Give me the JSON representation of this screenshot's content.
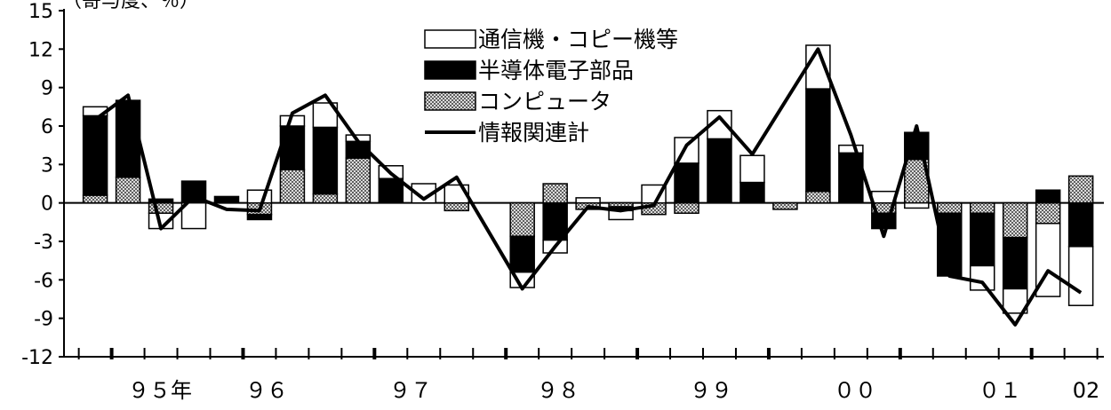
{
  "chart_data": {
    "type": "bar",
    "stacked": true,
    "title": "",
    "xlabel": "",
    "ylabel": "",
    "ylim": [
      -12,
      15
    ],
    "yticks": [
      15,
      12,
      9,
      6,
      3,
      0,
      -3,
      -6,
      -9,
      -12
    ],
    "grid": false,
    "legend_position": "top-center",
    "top_label": "（寄与度、％）",
    "x_year_labels": [
      "９５年",
      "９６",
      "９７",
      "９８",
      "９９",
      "００",
      "０１",
      "02"
    ],
    "colors": {
      "通信機・コピー機等": "#ffffff",
      "半導体電子部品": "#000000",
      "コンピュータ": "#b0b0b0",
      "情報関連計": "#000000"
    },
    "series": [
      {
        "name": "コンピュータ",
        "kind": "bar",
        "values": [
          0.6,
          2.0,
          -0.8,
          0.1,
          0.0,
          -0.9,
          2.6,
          0.7,
          3.5,
          0.0,
          0.0,
          -0.6,
          0.0,
          -2.6,
          1.5,
          -0.5,
          -0.3,
          -0.9,
          -0.8,
          0.0,
          0.0,
          -0.5,
          0.9,
          0.0,
          -0.8,
          3.4,
          -0.8,
          -0.8,
          -2.7,
          -1.6,
          2.1
        ]
      },
      {
        "name": "半導体電子部品",
        "kind": "bar",
        "values": [
          6.2,
          6.0,
          0.3,
          1.6,
          0.5,
          -0.4,
          3.4,
          5.2,
          1.3,
          1.9,
          0.0,
          0.0,
          0.0,
          -2.8,
          -2.9,
          0.0,
          -0.3,
          0.0,
          3.1,
          5.0,
          1.6,
          0.0,
          8.0,
          3.9,
          -1.2,
          2.1,
          -4.9,
          -4.1,
          -4.0,
          1.0,
          -3.4
        ]
      },
      {
        "name": "通信機・コピー機等",
        "kind": "bar",
        "values": [
          0.7,
          0.0,
          -1.2,
          -2.0,
          0.0,
          1.0,
          0.8,
          1.9,
          0.5,
          1.0,
          1.5,
          1.4,
          0.0,
          -1.2,
          -1.0,
          0.4,
          -0.7,
          1.4,
          2.0,
          2.2,
          2.1,
          0.0,
          3.4,
          0.6,
          0.9,
          -0.4,
          0.0,
          -1.9,
          -1.9,
          -5.7,
          -4.6
        ]
      },
      {
        "name": "情報関連計",
        "kind": "line",
        "values": [
          6.5,
          8.4,
          -2.0,
          0.5,
          -0.5,
          -0.6,
          7.0,
          8.4,
          4.8,
          2.3,
          0.3,
          2.0,
          null,
          -6.7,
          -3.4,
          -0.3,
          -0.6,
          -0.2,
          4.5,
          6.7,
          3.8,
          null,
          12.0,
          5.3,
          -2.6,
          6.0,
          -5.7,
          -6.2,
          -9.5,
          -5.3,
          -7.0
        ]
      }
    ]
  }
}
